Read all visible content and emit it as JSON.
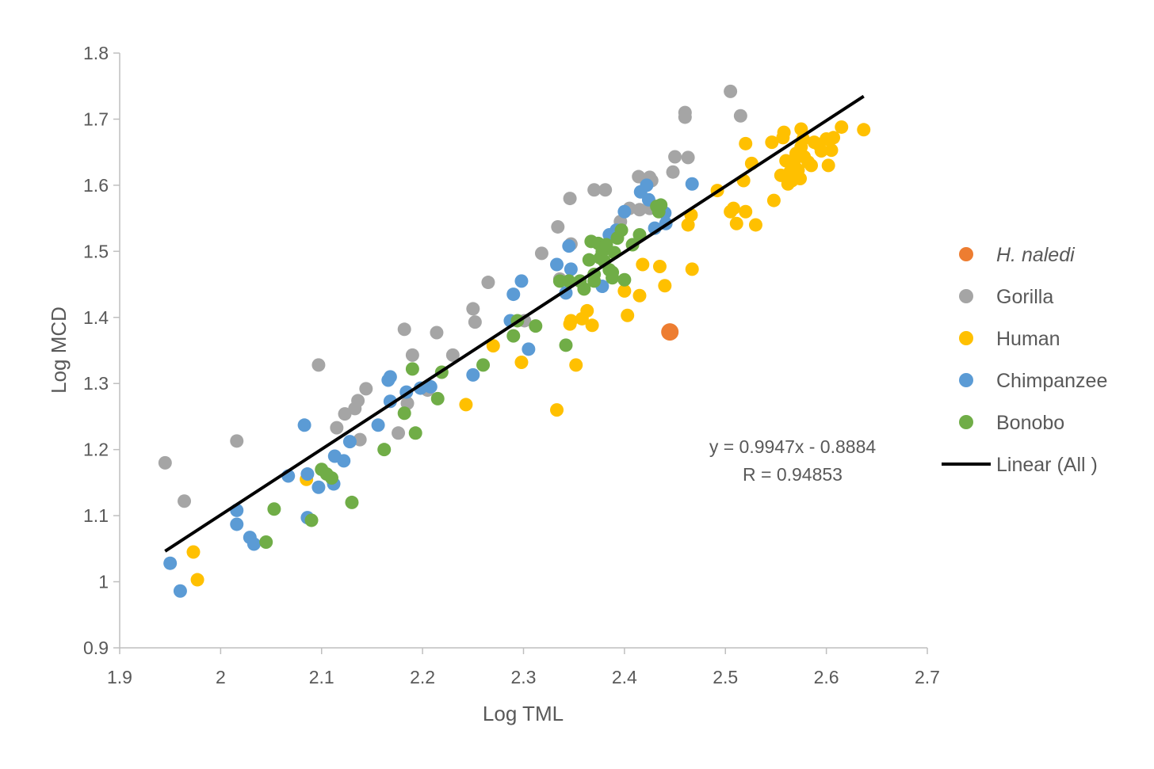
{
  "chart_data": {
    "type": "scatter",
    "title": "",
    "xlabel": "Log TML",
    "ylabel": "Log MCD",
    "xlim": [
      1.9,
      2.7
    ],
    "ylim": [
      0.9,
      1.8
    ],
    "x_ticks": [
      "1.9",
      "2",
      "2.1",
      "2.2",
      "2.3",
      "2.4",
      "2.5",
      "2.6",
      "2.7"
    ],
    "y_ticks": [
      "0.9",
      "1",
      "1.1",
      "1.2",
      "1.3",
      "1.4",
      "1.5",
      "1.6",
      "1.7",
      "1.8"
    ],
    "grid": false,
    "legend_position": "right",
    "series": [
      {
        "name": "H. naledi",
        "color": "#ED7D31",
        "points": [
          [
            2.445,
            1.378
          ]
        ]
      },
      {
        "name": "Gorilla",
        "color": "#A5A5A5",
        "points": [
          [
            1.945,
            1.18
          ],
          [
            1.964,
            1.122
          ],
          [
            2.016,
            1.213
          ],
          [
            2.097,
            1.328
          ],
          [
            2.115,
            1.233
          ],
          [
            2.123,
            1.254
          ],
          [
            2.133,
            1.262
          ],
          [
            2.136,
            1.274
          ],
          [
            2.138,
            1.215
          ],
          [
            2.144,
            1.292
          ],
          [
            2.176,
            1.225
          ],
          [
            2.182,
            1.382
          ],
          [
            2.185,
            1.27
          ],
          [
            2.19,
            1.343
          ],
          [
            2.205,
            1.29
          ],
          [
            2.214,
            1.377
          ],
          [
            2.23,
            1.343
          ],
          [
            2.25,
            1.413
          ],
          [
            2.252,
            1.393
          ],
          [
            2.265,
            1.453
          ],
          [
            2.301,
            1.395
          ],
          [
            2.318,
            1.497
          ],
          [
            2.334,
            1.537
          ],
          [
            2.336,
            1.458
          ],
          [
            2.346,
            1.58
          ],
          [
            2.347,
            1.511
          ],
          [
            2.37,
            1.593
          ],
          [
            2.381,
            1.593
          ],
          [
            2.396,
            1.545
          ],
          [
            2.405,
            1.565
          ],
          [
            2.414,
            1.613
          ],
          [
            2.415,
            1.563
          ],
          [
            2.422,
            1.605
          ],
          [
            2.425,
            1.612
          ],
          [
            2.427,
            1.607
          ],
          [
            2.425,
            1.565
          ],
          [
            2.448,
            1.62
          ],
          [
            2.45,
            1.643
          ],
          [
            2.46,
            1.71
          ],
          [
            2.46,
            1.703
          ],
          [
            2.463,
            1.642
          ],
          [
            2.505,
            1.742
          ],
          [
            2.515,
            1.705
          ]
        ]
      },
      {
        "name": "Human",
        "color": "#FFC000",
        "points": [
          [
            1.973,
            1.045
          ],
          [
            1.977,
            1.003
          ],
          [
            2.085,
            1.155
          ],
          [
            2.243,
            1.268
          ],
          [
            2.27,
            1.357
          ],
          [
            2.298,
            1.332
          ],
          [
            2.333,
            1.26
          ],
          [
            2.346,
            1.39
          ],
          [
            2.347,
            1.395
          ],
          [
            2.352,
            1.328
          ],
          [
            2.358,
            1.398
          ],
          [
            2.363,
            1.41
          ],
          [
            2.368,
            1.388
          ],
          [
            2.4,
            1.44
          ],
          [
            2.403,
            1.403
          ],
          [
            2.415,
            1.433
          ],
          [
            2.418,
            1.48
          ],
          [
            2.435,
            1.477
          ],
          [
            2.44,
            1.448
          ],
          [
            2.463,
            1.54
          ],
          [
            2.466,
            1.555
          ],
          [
            2.467,
            1.473
          ],
          [
            2.492,
            1.592
          ],
          [
            2.505,
            1.56
          ],
          [
            2.508,
            1.565
          ],
          [
            2.511,
            1.542
          ],
          [
            2.518,
            1.607
          ],
          [
            2.52,
            1.663
          ],
          [
            2.52,
            1.56
          ],
          [
            2.526,
            1.633
          ],
          [
            2.53,
            1.54
          ],
          [
            2.546,
            1.665
          ],
          [
            2.548,
            1.577
          ],
          [
            2.555,
            1.615
          ],
          [
            2.557,
            1.672
          ],
          [
            2.558,
            1.68
          ],
          [
            2.56,
            1.637
          ],
          [
            2.562,
            1.602
          ],
          [
            2.564,
            1.62
          ],
          [
            2.566,
            1.607
          ],
          [
            2.568,
            1.632
          ],
          [
            2.57,
            1.648
          ],
          [
            2.572,
            1.623
          ],
          [
            2.574,
            1.61
          ],
          [
            2.575,
            1.658
          ],
          [
            2.575,
            1.685
          ],
          [
            2.577,
            1.67
          ],
          [
            2.578,
            1.643
          ],
          [
            2.582,
            1.635
          ],
          [
            2.585,
            1.63
          ],
          [
            2.588,
            1.665
          ],
          [
            2.592,
            1.662
          ],
          [
            2.595,
            1.652
          ],
          [
            2.6,
            1.67
          ],
          [
            2.602,
            1.63
          ],
          [
            2.605,
            1.653
          ],
          [
            2.607,
            1.672
          ],
          [
            2.615,
            1.688
          ],
          [
            2.637,
            1.684
          ]
        ]
      },
      {
        "name": "Chimpanzee",
        "color": "#5B9BD5",
        "points": [
          [
            1.95,
            1.028
          ],
          [
            1.96,
            0.986
          ],
          [
            2.016,
            1.108
          ],
          [
            2.016,
            1.087
          ],
          [
            2.029,
            1.067
          ],
          [
            2.033,
            1.057
          ],
          [
            2.067,
            1.16
          ],
          [
            2.083,
            1.237
          ],
          [
            2.086,
            1.163
          ],
          [
            2.086,
            1.097
          ],
          [
            2.097,
            1.143
          ],
          [
            2.112,
            1.148
          ],
          [
            2.113,
            1.19
          ],
          [
            2.122,
            1.183
          ],
          [
            2.128,
            1.212
          ],
          [
            2.156,
            1.237
          ],
          [
            2.166,
            1.305
          ],
          [
            2.168,
            1.31
          ],
          [
            2.168,
            1.273
          ],
          [
            2.184,
            1.287
          ],
          [
            2.198,
            1.293
          ],
          [
            2.208,
            1.295
          ],
          [
            2.25,
            1.313
          ],
          [
            2.287,
            1.395
          ],
          [
            2.29,
            1.435
          ],
          [
            2.298,
            1.455
          ],
          [
            2.305,
            1.352
          ],
          [
            2.333,
            1.48
          ],
          [
            2.342,
            1.437
          ],
          [
            2.345,
            1.508
          ],
          [
            2.347,
            1.473
          ],
          [
            2.378,
            1.447
          ],
          [
            2.385,
            1.525
          ],
          [
            2.392,
            1.532
          ],
          [
            2.4,
            1.56
          ],
          [
            2.416,
            1.59
          ],
          [
            2.422,
            1.6
          ],
          [
            2.424,
            1.578
          ],
          [
            2.43,
            1.535
          ],
          [
            2.44,
            1.558
          ],
          [
            2.441,
            1.542
          ],
          [
            2.467,
            1.602
          ]
        ]
      },
      {
        "name": "Bonobo",
        "color": "#70AD47",
        "points": [
          [
            2.045,
            1.06
          ],
          [
            2.053,
            1.11
          ],
          [
            2.09,
            1.093
          ],
          [
            2.1,
            1.17
          ],
          [
            2.105,
            1.163
          ],
          [
            2.11,
            1.157
          ],
          [
            2.13,
            1.12
          ],
          [
            2.162,
            1.2
          ],
          [
            2.182,
            1.255
          ],
          [
            2.19,
            1.322
          ],
          [
            2.193,
            1.225
          ],
          [
            2.215,
            1.277
          ],
          [
            2.219,
            1.317
          ],
          [
            2.26,
            1.328
          ],
          [
            2.29,
            1.372
          ],
          [
            2.294,
            1.395
          ],
          [
            2.312,
            1.387
          ],
          [
            2.336,
            1.455
          ],
          [
            2.342,
            1.358
          ],
          [
            2.345,
            1.455
          ],
          [
            2.356,
            1.455
          ],
          [
            2.36,
            1.443
          ],
          [
            2.365,
            1.487
          ],
          [
            2.367,
            1.515
          ],
          [
            2.37,
            1.455
          ],
          [
            2.37,
            1.465
          ],
          [
            2.374,
            1.512
          ],
          [
            2.376,
            1.49
          ],
          [
            2.378,
            1.5
          ],
          [
            2.38,
            1.485
          ],
          [
            2.382,
            1.51
          ],
          [
            2.385,
            1.472
          ],
          [
            2.388,
            1.46
          ],
          [
            2.388,
            1.468
          ],
          [
            2.39,
            1.498
          ],
          [
            2.393,
            1.52
          ],
          [
            2.397,
            1.532
          ],
          [
            2.4,
            1.457
          ],
          [
            2.408,
            1.51
          ],
          [
            2.415,
            1.525
          ],
          [
            2.432,
            1.568
          ],
          [
            2.436,
            1.57
          ],
          [
            2.434,
            1.56
          ]
        ]
      }
    ],
    "trendline": {
      "name": "Linear (All )",
      "color": "#000000",
      "slope": 0.9947,
      "intercept": -0.8884,
      "x_range": [
        1.945,
        2.637
      ],
      "equation_text": "y = 0.9947x - 0.8884",
      "r_text": "R = 0.94853"
    }
  }
}
